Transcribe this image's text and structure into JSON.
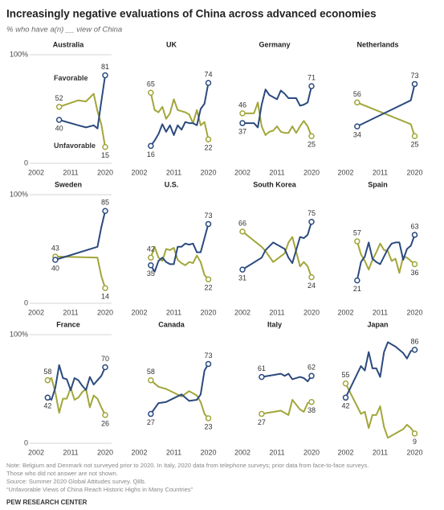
{
  "header": {
    "title": "Increasingly negative evaluations of China across advanced economies",
    "subtitle": "% who have a(n) __ view of China"
  },
  "footer": {
    "notes": [
      "Note: Belgium and Denmark not surveyed prior to 2020. In Italy, 2020 data from telephone surveys; prior data from face-to-face surveys.",
      "Those who did not answer are not shown.",
      "Source: Summer 2020 Global Attitudes survey. Q8b.",
      "“Unfavorable Views of China Reach Historic Highs in Many Countries”"
    ],
    "org": "PEW RESEARCH CENTER"
  },
  "chart_data": [
    {
      "type": "line",
      "title": "Australia",
      "x": [
        2008,
        2013,
        2015,
        2017,
        2018,
        2019,
        2020
      ],
      "xlim": [
        2002,
        2020
      ],
      "xticks": [
        2002,
        2011,
        2020
      ],
      "ylim": [
        0,
        100
      ],
      "yticks": [
        0,
        {
          "value": 100,
          "label": "100%"
        }
      ],
      "series": [
        {
          "name": "Favorable",
          "color": "#a2a63a",
          "values": [
            52,
            58,
            57,
            64,
            48,
            36,
            15
          ]
        },
        {
          "name": "Unfavorable",
          "color": "#2b4a7e",
          "values": [
            40,
            35,
            33,
            35,
            32,
            57,
            81
          ]
        }
      ]
    },
    {
      "type": "line",
      "title": "UK",
      "x": [
        2005,
        2006,
        2007,
        2008,
        2009,
        2010,
        2011,
        2012,
        2013,
        2014,
        2015,
        2016,
        2017,
        2018,
        2019,
        2020
      ],
      "xlim": [
        2002,
        2020
      ],
      "xticks": [
        2002,
        2011,
        2020
      ],
      "ylim": [
        0,
        100
      ],
      "series": [
        {
          "color": "#a2a63a",
          "values": [
            65,
            49,
            47,
            52,
            41,
            46,
            59,
            49,
            48,
            47,
            45,
            37,
            49,
            35,
            38,
            22
          ]
        },
        {
          "color": "#2b4a7e",
          "values": [
            16,
            21,
            27,
            36,
            29,
            35,
            26,
            35,
            31,
            38,
            37,
            37,
            35,
            50,
            55,
            74
          ]
        }
      ]
    },
    {
      "type": "line",
      "title": "Germany",
      "x": [
        2002,
        2005,
        2006,
        2007,
        2008,
        2009,
        2010,
        2011,
        2012,
        2013,
        2014,
        2015,
        2016,
        2017,
        2018,
        2019,
        2020
      ],
      "xlim": [
        2002,
        2020
      ],
      "xticks": [
        2002,
        2011,
        2020
      ],
      "ylim": [
        0,
        100
      ],
      "series": [
        {
          "color": "#a2a63a",
          "values": [
            46,
            46,
            56,
            34,
            26,
            29,
            30,
            34,
            29,
            28,
            28,
            34,
            28,
            34,
            39,
            34,
            25
          ]
        },
        {
          "color": "#2b4a7e",
          "values": [
            37,
            37,
            33,
            54,
            68,
            63,
            61,
            59,
            67,
            64,
            60,
            60,
            60,
            53,
            54,
            56,
            71
          ]
        }
      ]
    },
    {
      "type": "line",
      "title": "Netherlands",
      "x": [
        2005,
        2019,
        2020
      ],
      "xlim": [
        2002,
        2020
      ],
      "xticks": [
        2002,
        2011,
        2020
      ],
      "ylim": [
        0,
        100
      ],
      "series": [
        {
          "color": "#a2a63a",
          "values": [
            56,
            36,
            25
          ]
        },
        {
          "color": "#2b4a7e",
          "values": [
            34,
            58,
            73
          ]
        }
      ]
    },
    {
      "type": "line",
      "title": "Sweden",
      "x": [
        2007,
        2018,
        2019,
        2020
      ],
      "xlim": [
        2002,
        2020
      ],
      "xticks": [
        2002,
        2011,
        2020
      ],
      "ylim": [
        0,
        100
      ],
      "yticks": [
        0,
        {
          "value": 100,
          "label": "100%"
        }
      ],
      "series": [
        {
          "color": "#a2a63a",
          "values": [
            43,
            42,
            25,
            14
          ]
        },
        {
          "color": "#2b4a7e",
          "values": [
            40,
            52,
            70,
            85
          ]
        }
      ]
    },
    {
      "type": "line",
      "title": "U.S.",
      "x": [
        2005,
        2006,
        2007,
        2008,
        2009,
        2010,
        2011,
        2012,
        2013,
        2014,
        2015,
        2016,
        2017,
        2018,
        2019,
        2020
      ],
      "xlim": [
        2002,
        2020
      ],
      "xticks": [
        2002,
        2011,
        2020
      ],
      "ylim": [
        0,
        100
      ],
      "series": [
        {
          "color": "#a2a63a",
          "values": [
            42,
            52,
            42,
            39,
            50,
            49,
            51,
            40,
            37,
            35,
            38,
            37,
            44,
            38,
            26,
            22
          ]
        },
        {
          "color": "#2b4a7e",
          "values": [
            35,
            29,
            39,
            42,
            38,
            36,
            36,
            52,
            52,
            55,
            54,
            55,
            47,
            47,
            60,
            73
          ]
        }
      ]
    },
    {
      "type": "line",
      "title": "South Korea",
      "x": [
        2002,
        2007,
        2008,
        2010,
        2013,
        2014,
        2015,
        2017,
        2018,
        2019,
        2020
      ],
      "xlim": [
        2002,
        2020
      ],
      "xticks": [
        2002,
        2011,
        2020
      ],
      "ylim": [
        0,
        100
      ],
      "series": [
        {
          "color": "#a2a63a",
          "values": [
            66,
            52,
            48,
            38,
            46,
            56,
            61,
            34,
            38,
            34,
            24
          ]
        },
        {
          "color": "#2b4a7e",
          "values": [
            31,
            42,
            49,
            56,
            50,
            42,
            37,
            61,
            60,
            63,
            75
          ]
        }
      ]
    },
    {
      "type": "line",
      "title": "Spain",
      "x": [
        2005,
        2006,
        2007,
        2008,
        2009,
        2010,
        2011,
        2012,
        2013,
        2014,
        2015,
        2016,
        2017,
        2018,
        2019,
        2020
      ],
      "xlim": [
        2002,
        2020
      ],
      "xticks": [
        2002,
        2011,
        2020
      ],
      "ylim": [
        0,
        100
      ],
      "series": [
        {
          "color": "#a2a63a",
          "values": [
            57,
            45,
            39,
            31,
            40,
            47,
            55,
            49,
            48,
            39,
            41,
            28,
            43,
            42,
            39,
            36
          ]
        },
        {
          "color": "#2b4a7e",
          "values": [
            21,
            38,
            43,
            56,
            41,
            38,
            36,
            43,
            50,
            55,
            56,
            56,
            40,
            50,
            53,
            63
          ]
        }
      ]
    },
    {
      "type": "line",
      "title": "France",
      "x": [
        2005,
        2006,
        2007,
        2008,
        2009,
        2010,
        2011,
        2012,
        2013,
        2014,
        2015,
        2016,
        2017,
        2018,
        2019,
        2020
      ],
      "xlim": [
        2002,
        2020
      ],
      "xticks": [
        2002,
        2011,
        2020
      ],
      "ylim": [
        0,
        100
      ],
      "yticks": [
        0,
        {
          "value": 100,
          "label": "100%"
        }
      ],
      "series": [
        {
          "color": "#a2a63a",
          "values": [
            58,
            60,
            47,
            28,
            41,
            41,
            51,
            40,
            42,
            47,
            50,
            33,
            44,
            41,
            33,
            26
          ]
        },
        {
          "color": "#2b4a7e",
          "values": [
            42,
            40,
            51,
            72,
            60,
            59,
            49,
            60,
            58,
            53,
            49,
            61,
            54,
            58,
            62,
            70
          ]
        }
      ]
    },
    {
      "type": "line",
      "title": "Canada",
      "x": [
        2005,
        2007,
        2009,
        2013,
        2015,
        2017,
        2018,
        2019,
        2020
      ],
      "xlim": [
        2002,
        2020
      ],
      "xticks": [
        2002,
        2011,
        2020
      ],
      "ylim": [
        0,
        100
      ],
      "series": [
        {
          "color": "#a2a63a",
          "values": [
            58,
            52,
            50,
            43,
            48,
            44,
            38,
            27,
            23
          ]
        },
        {
          "color": "#2b4a7e",
          "values": [
            27,
            37,
            38,
            45,
            39,
            40,
            45,
            67,
            73
          ]
        }
      ]
    },
    {
      "type": "line",
      "title": "Italy",
      "x": [
        2007,
        2012,
        2013,
        2014,
        2015,
        2017,
        2018,
        2019,
        2020
      ],
      "xlim": [
        2002,
        2020
      ],
      "xticks": [
        2002,
        2011,
        2020
      ],
      "ylim": [
        0,
        100
      ],
      "series": [
        {
          "color": "#a2a63a",
          "values": [
            27,
            30,
            28,
            26,
            40,
            31,
            29,
            37,
            38
          ]
        },
        {
          "color": "#2b4a7e",
          "values": [
            61,
            64,
            62,
            64,
            59,
            61,
            60,
            57,
            62
          ]
        }
      ]
    },
    {
      "type": "line",
      "title": "Japan",
      "x": [
        2002,
        2006,
        2007,
        2008,
        2009,
        2010,
        2011,
        2012,
        2013,
        2014,
        2015,
        2016,
        2017,
        2018,
        2019,
        2020
      ],
      "xlim": [
        2002,
        2020
      ],
      "xticks": [
        2002,
        2011,
        2020
      ],
      "ylim": [
        0,
        100
      ],
      "series": [
        {
          "color": "#a2a63a",
          "values": [
            55,
            27,
            29,
            14,
            26,
            26,
            34,
            15,
            5,
            7,
            9,
            11,
            13,
            17,
            14,
            9
          ]
        },
        {
          "color": "#2b4a7e",
          "values": [
            42,
            71,
            67,
            84,
            69,
            69,
            61,
            84,
            93,
            91,
            89,
            86,
            83,
            78,
            85,
            86
          ]
        }
      ]
    }
  ]
}
